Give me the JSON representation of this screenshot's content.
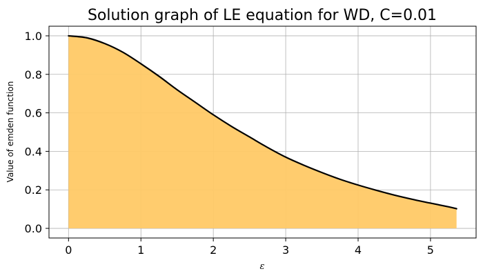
{
  "chart_data": {
    "type": "area",
    "title": "Solution graph of LE equation for WD, C=0.01",
    "xlabel": "ε",
    "ylabel": "Value of emden function",
    "xlim": [
      -0.27,
      5.63
    ],
    "ylim": [
      -0.05,
      1.05
    ],
    "x_ticks": [
      0,
      1,
      2,
      3,
      4,
      5
    ],
    "x_tick_labels": [
      "0",
      "1",
      "2",
      "3",
      "4",
      "5"
    ],
    "y_ticks": [
      0.0,
      0.2,
      0.4,
      0.6,
      0.8,
      1.0
    ],
    "y_tick_labels": [
      "0.0",
      "0.2",
      "0.4",
      "0.6",
      "0.8",
      "1.0"
    ],
    "grid": true,
    "series": [
      {
        "x": [
          0.0,
          0.25,
          0.5,
          0.75,
          1.0,
          1.25,
          1.5,
          1.75,
          2.0,
          2.25,
          2.5,
          2.75,
          3.0,
          3.25,
          3.5,
          3.75,
          4.0,
          4.25,
          4.5,
          4.75,
          5.0,
          5.25,
          5.36
        ],
        "y": [
          1.0,
          0.99,
          0.96,
          0.915,
          0.855,
          0.79,
          0.72,
          0.655,
          0.59,
          0.53,
          0.475,
          0.42,
          0.37,
          0.328,
          0.29,
          0.255,
          0.225,
          0.198,
          0.173,
          0.151,
          0.131,
          0.112,
          0.102
        ],
        "line_color": "#000000",
        "fill_color": "#ffc966"
      }
    ]
  }
}
